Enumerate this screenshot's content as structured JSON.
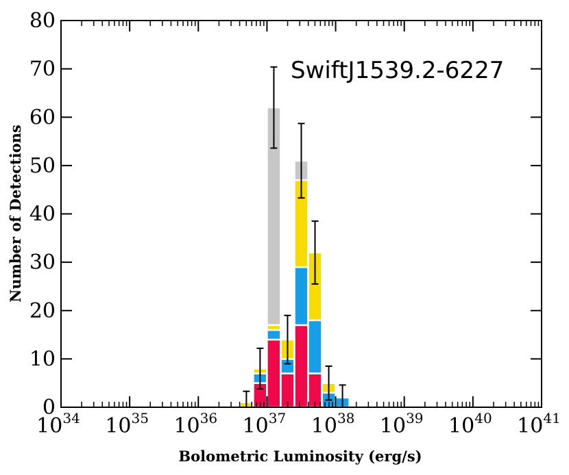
{
  "chart_data": {
    "type": "bar",
    "stacked": true,
    "title": "SwiftJ1539.2-6227",
    "xlabel": "Bolometric Luminosity (erg/s)",
    "ylabel": "Number of Detections",
    "xscale": "log",
    "xlim_log10": [
      34,
      41
    ],
    "ylim": [
      0,
      80
    ],
    "grid": false,
    "bin_width_log10": 0.2,
    "x_ticks": [
      {
        "base": "10",
        "exp": "34"
      },
      {
        "base": "10",
        "exp": "35"
      },
      {
        "base": "10",
        "exp": "36"
      },
      {
        "base": "10",
        "exp": "37"
      },
      {
        "base": "10",
        "exp": "38"
      },
      {
        "base": "10",
        "exp": "39"
      },
      {
        "base": "10",
        "exp": "40"
      },
      {
        "base": "10",
        "exp": "41"
      }
    ],
    "y_ticks": [
      "0",
      "10",
      "20",
      "30",
      "40",
      "50",
      "60",
      "70",
      "80"
    ],
    "colors": {
      "red": "#f0094a",
      "blue": "#169ee8",
      "yellow": "#f8dc00",
      "gray": "#c7c7c7",
      "error": "#000000"
    },
    "bins": [
      {
        "log_center": 36.7,
        "red": 0,
        "blue": 0,
        "yellow": 1,
        "gray": 0,
        "error": 2.3
      },
      {
        "log_center": 36.9,
        "red": 5,
        "blue": 2,
        "yellow": 1,
        "gray": 0,
        "error": 4.2
      },
      {
        "log_center": 37.1,
        "red": 14,
        "blue": 2,
        "yellow": 1,
        "gray": 45,
        "error": 8.4
      },
      {
        "log_center": 37.3,
        "red": 7,
        "blue": 3,
        "yellow": 4,
        "gray": 0,
        "error": 5.0
      },
      {
        "log_center": 37.5,
        "red": 17,
        "blue": 12,
        "yellow": 18,
        "gray": 4,
        "error": 7.7
      },
      {
        "log_center": 37.7,
        "red": 7,
        "blue": 11,
        "yellow": 14,
        "gray": 0,
        "error": 6.5
      },
      {
        "log_center": 37.9,
        "red": 0,
        "blue": 3,
        "yellow": 2,
        "gray": 0,
        "error": 3.5
      },
      {
        "log_center": 38.1,
        "red": 0,
        "blue": 2,
        "yellow": 0,
        "gray": 0,
        "error": 2.6
      }
    ]
  }
}
